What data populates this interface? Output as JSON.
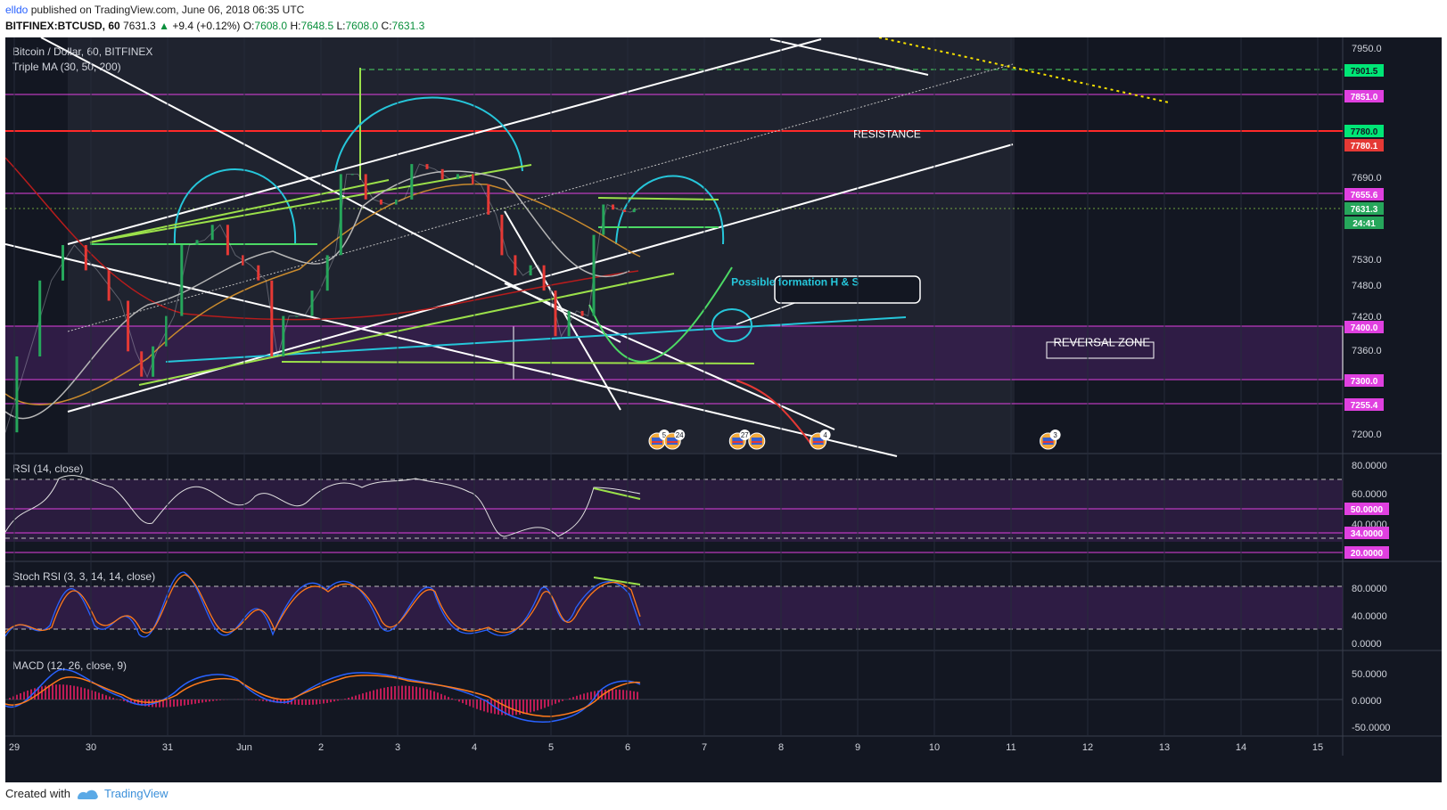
{
  "header": {
    "username": "elldo",
    "published": "published on TradingView.com, June 06, 2018 06:35 UTC",
    "symbol": "BITFINEX:BTCUSD, 60",
    "last": "7631.3",
    "change_arrow": "▲",
    "change": "+9.4 (+0.12%)",
    "o_label": "O:",
    "o": "7608.0",
    "h_label": "H:",
    "h": "7648.5",
    "l_label": "L:",
    "l": "7608.0",
    "c_label": "C:",
    "c": "7631.3"
  },
  "footer": {
    "created_with": "Created with",
    "brand": "TradingView"
  },
  "colors": {
    "background": "#131722",
    "grid": "#262b3a",
    "magenta": "#e040e0",
    "green_price": "#26a65b",
    "red_price": "#e53935",
    "white": "#ffffff",
    "cyan": "#26c6da",
    "lime": "#9be04a",
    "zone": "#3a1f52"
  },
  "chart_data": [
    {
      "type": "line",
      "name": "price-panel",
      "title": "Bitcoin / Dollar, 60, BITFINEX",
      "indicator": "Triple MA (30, 50, 200)",
      "x_ticks": [
        "29",
        "30",
        "31",
        "Jun",
        "2",
        "3",
        "4",
        "5",
        "6",
        "7",
        "8",
        "9",
        "10",
        "11",
        "12",
        "13",
        "14",
        "15"
      ],
      "y_ticks": [
        "7950.0",
        "7690.0",
        "7530.0",
        "7480.0",
        "7420.0",
        "7360.0",
        "7200.0"
      ],
      "ylim": [
        7150,
        7970
      ],
      "price_tags": [
        {
          "value": 7901.5,
          "label": "7901.5",
          "color": "#00e676"
        },
        {
          "value": 7851.0,
          "label": "7851.0",
          "color": "#e040e0"
        },
        {
          "value": 7780.0,
          "label": "7780.0",
          "color": "#00e676"
        },
        {
          "value": 7780.1,
          "label": "7780.1",
          "color": "#e53935"
        },
        {
          "value": 7655.6,
          "label": "7655.6",
          "color": "#e040e0"
        },
        {
          "value": 7631.3,
          "label": "7631.3",
          "color": "#26a65b"
        },
        {
          "value": 7612.0,
          "label": "24:41",
          "color": "#26a65b"
        },
        {
          "value": 7400.0,
          "label": "7400.0",
          "color": "#e040e0"
        },
        {
          "value": 7300.0,
          "label": "7300.0",
          "color": "#e040e0"
        },
        {
          "value": 7255.4,
          "label": "7255.4",
          "color": "#e040e0"
        }
      ],
      "price_series": [
        [
          0,
          7190
        ],
        [
          0.3,
          7340
        ],
        [
          0.6,
          7490
        ],
        [
          0.9,
          7560
        ],
        [
          1.2,
          7510
        ],
        [
          1.5,
          7450
        ],
        [
          1.7,
          7350
        ],
        [
          1.85,
          7300
        ],
        [
          2.0,
          7360
        ],
        [
          2.2,
          7420
        ],
        [
          2.4,
          7560
        ],
        [
          2.6,
          7570
        ],
        [
          2.8,
          7600
        ],
        [
          3.0,
          7540
        ],
        [
          3.2,
          7520
        ],
        [
          3.4,
          7490
        ],
        [
          3.55,
          7340
        ],
        [
          3.7,
          7420
        ],
        [
          3.9,
          7420
        ],
        [
          4.1,
          7470
        ],
        [
          4.3,
          7540
        ],
        [
          4.45,
          7700
        ],
        [
          4.6,
          7700
        ],
        [
          4.8,
          7650
        ],
        [
          5.0,
          7640
        ],
        [
          5.2,
          7650
        ],
        [
          5.4,
          7720
        ],
        [
          5.6,
          7710
        ],
        [
          5.8,
          7690
        ],
        [
          6.0,
          7700
        ],
        [
          6.2,
          7680
        ],
        [
          6.4,
          7620
        ],
        [
          6.55,
          7540
        ],
        [
          6.75,
          7500
        ],
        [
          6.95,
          7520
        ],
        [
          7.1,
          7470
        ],
        [
          7.25,
          7380
        ],
        [
          7.45,
          7430
        ],
        [
          7.6,
          7420
        ],
        [
          7.75,
          7580
        ],
        [
          7.85,
          7640
        ],
        [
          8.0,
          7630
        ],
        [
          8.15,
          7625
        ],
        [
          8.25,
          7631.3
        ]
      ],
      "annotations": [
        {
          "text": "RESISTANCE",
          "x": 11.5,
          "y": 7772
        },
        {
          "text": "Possible formation H & S",
          "x": 10.3,
          "y": 7480
        },
        {
          "text": "REVERSAL ZONE",
          "x": 14.3,
          "y": 7360
        }
      ],
      "event_markers": [
        {
          "x": 8.5,
          "count": "5"
        },
        {
          "x": 8.7,
          "count": "24"
        },
        {
          "x": 9.55,
          "count": "27"
        },
        {
          "x": 9.8,
          "count": ""
        },
        {
          "x": 10.6,
          "count": "4"
        },
        {
          "x": 13.6,
          "count": "3"
        }
      ]
    },
    {
      "type": "line",
      "name": "rsi-panel",
      "title": "RSI (14, close)",
      "y_ticks": [
        "80.0000",
        "60.0000",
        "40.0000"
      ],
      "ylim": [
        15,
        85
      ],
      "tags": [
        {
          "value": 50,
          "label": "50.0000"
        },
        {
          "value": 34,
          "label": "34.0000"
        },
        {
          "value": 20,
          "label": "20.0000"
        }
      ]
    },
    {
      "type": "line",
      "name": "stoch-rsi-panel",
      "title": "Stoch RSI (3, 3, 14, 14, close)",
      "y_ticks": [
        "80.0000",
        "40.0000",
        "0.0000"
      ],
      "ylim": [
        -10,
        100
      ]
    },
    {
      "type": "line",
      "name": "macd-panel",
      "title": "MACD (12, 26, close, 9)",
      "y_ticks": [
        "50.0000",
        "0.0000",
        "-50.0000"
      ],
      "ylim": [
        -65,
        75
      ]
    }
  ]
}
